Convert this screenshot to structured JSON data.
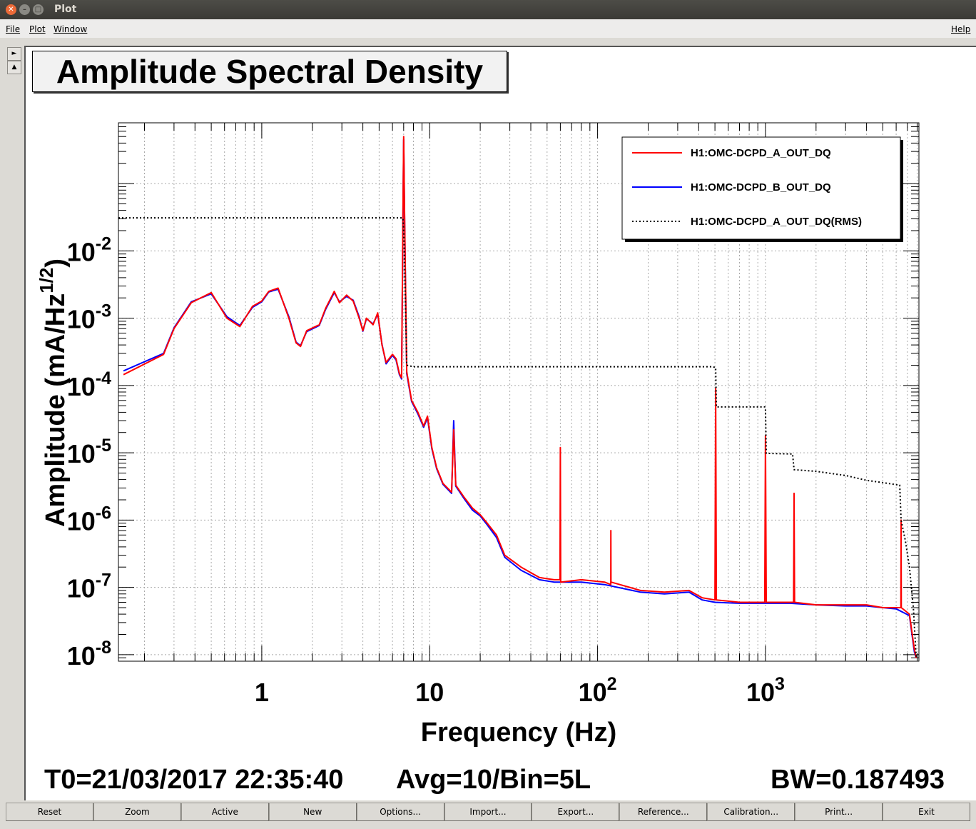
{
  "window": {
    "title": "Plot"
  },
  "menu": {
    "file": "File",
    "plot": "Plot",
    "window": "Window",
    "help": "Help"
  },
  "side_buttons": [
    "►",
    "▲"
  ],
  "plot_title": "Amplitude Spectral Density",
  "footer": {
    "t0": "T0=21/03/2017 22:35:40",
    "avg": "Avg=10/Bin=5L",
    "bw": "BW=0.187493"
  },
  "buttons": [
    "Reset",
    "Zoom",
    "Active",
    "New",
    "Options...",
    "Import...",
    "Export...",
    "Reference...",
    "Calibration...",
    "Print...",
    "Exit"
  ],
  "colors": {
    "series_a": "#ff0000",
    "series_b": "#0000ff",
    "rms": "#000000"
  },
  "chart_data": {
    "type": "line",
    "title": "Amplitude Spectral Density",
    "xlabel": "Frequency (Hz)",
    "ylabel": "Amplitude (mA/Hz^1/2)",
    "xscale": "log",
    "yscale": "log",
    "xlim": [
      0.14,
      8200
    ],
    "ylim": [
      8e-09,
      0.8
    ],
    "grid": true,
    "legend_position": "top-right",
    "x_ticks": [
      {
        "value": 1,
        "base": "1",
        "exp": ""
      },
      {
        "value": 10,
        "base": "10",
        "exp": ""
      },
      {
        "value": 100,
        "base": "10",
        "exp": "2"
      },
      {
        "value": 1000,
        "base": "10",
        "exp": "3"
      }
    ],
    "y_ticks": [
      {
        "value": 1e-08,
        "base": "10",
        "exp": "-8"
      },
      {
        "value": 1e-07,
        "base": "10",
        "exp": "-7"
      },
      {
        "value": 1e-06,
        "base": "10",
        "exp": "-6"
      },
      {
        "value": 1e-05,
        "base": "10",
        "exp": "-5"
      },
      {
        "value": 0.0001,
        "base": "10",
        "exp": "-4"
      },
      {
        "value": 0.001,
        "base": "10",
        "exp": "-3"
      },
      {
        "value": 0.01,
        "base": "10",
        "exp": "-2"
      }
    ],
    "series": [
      {
        "name": "H1:OMC-DCPD_A_OUT_DQ",
        "color": "#ff0000",
        "style": "solid",
        "points": [
          [
            0.15,
            0.000145
          ],
          [
            0.26,
            0.00029
          ],
          [
            0.3,
            0.0007
          ],
          [
            0.38,
            0.0017
          ],
          [
            0.5,
            0.0024
          ],
          [
            0.62,
            0.001
          ],
          [
            0.74,
            0.00075
          ],
          [
            0.88,
            0.0015
          ],
          [
            1.0,
            0.0018
          ],
          [
            1.1,
            0.0025
          ],
          [
            1.25,
            0.0028
          ],
          [
            1.45,
            0.001
          ],
          [
            1.6,
            0.00043
          ],
          [
            1.7,
            0.00038
          ],
          [
            1.85,
            0.00065
          ],
          [
            2.2,
            0.0008
          ],
          [
            2.4,
            0.0014
          ],
          [
            2.7,
            0.0025
          ],
          [
            2.9,
            0.0017
          ],
          [
            3.2,
            0.0022
          ],
          [
            3.5,
            0.0018
          ],
          [
            3.8,
            0.001
          ],
          [
            4.0,
            0.00065
          ],
          [
            4.2,
            0.001
          ],
          [
            4.6,
            0.0008
          ],
          [
            4.9,
            0.0012
          ],
          [
            5.2,
            0.0004
          ],
          [
            5.5,
            0.00022
          ],
          [
            6.0,
            0.00029
          ],
          [
            6.3,
            0.00025
          ],
          [
            6.6,
            0.00015
          ],
          [
            6.8,
            0.00013
          ],
          [
            6.95,
            0.08
          ],
          [
            7.0,
            0.5
          ],
          [
            7.08,
            0.04
          ],
          [
            7.3,
            0.00016
          ],
          [
            7.8,
            6e-05
          ],
          [
            8.5,
            4e-05
          ],
          [
            9.2,
            2.5e-05
          ],
          [
            9.7,
            3.5e-05
          ],
          [
            10.3,
            1.2e-05
          ],
          [
            11.0,
            6e-06
          ],
          [
            12.0,
            3.5e-06
          ],
          [
            13.5,
            2.6e-06
          ],
          [
            13.9,
            2.2e-05
          ],
          [
            14.3,
            3.3e-06
          ],
          [
            16.0,
            2.2e-06
          ],
          [
            18,
            1.5e-06
          ],
          [
            20,
            1.2e-06
          ],
          [
            22,
            9e-07
          ],
          [
            25,
            6e-07
          ],
          [
            28,
            3e-07
          ],
          [
            35,
            2e-07
          ],
          [
            45,
            1.4e-07
          ],
          [
            55,
            1.3e-07
          ],
          [
            59.7,
            1.3e-07
          ],
          [
            60,
            1.2e-05
          ],
          [
            60.3,
            1.2e-07
          ],
          [
            80,
            1.3e-07
          ],
          [
            110,
            1.2e-07
          ],
          [
            119.8,
            1.1e-07
          ],
          [
            120,
            7e-07
          ],
          [
            120.2,
            1.2e-07
          ],
          [
            180,
            9e-08
          ],
          [
            250,
            8.5e-08
          ],
          [
            350,
            9e-08
          ],
          [
            420,
            7e-08
          ],
          [
            500,
            6.5e-08
          ],
          [
            505,
            9e-05
          ],
          [
            510,
            6.5e-08
          ],
          [
            700,
            6e-08
          ],
          [
            990,
            6e-08
          ],
          [
            1000,
            1.8e-05
          ],
          [
            1010,
            6e-08
          ],
          [
            1400,
            6e-08
          ],
          [
            1470,
            6e-08
          ],
          [
            1480,
            2.5e-06
          ],
          [
            1490,
            6e-08
          ],
          [
            2000,
            5.5e-08
          ],
          [
            3000,
            5.5e-08
          ],
          [
            4000,
            5.5e-08
          ],
          [
            5000,
            5e-08
          ],
          [
            6000,
            5e-08
          ],
          [
            6400,
            5e-08
          ],
          [
            6420,
            1e-06
          ],
          [
            6440,
            5e-08
          ],
          [
            7200,
            4e-08
          ],
          [
            7700,
            1.2e-08
          ],
          [
            7900,
            9e-09
          ]
        ]
      },
      {
        "name": "H1:OMC-DCPD_B_OUT_DQ",
        "color": "#0000ff",
        "style": "solid",
        "points": [
          [
            0.15,
            0.000165
          ],
          [
            0.26,
            0.0003
          ],
          [
            0.3,
            0.00072
          ],
          [
            0.38,
            0.00175
          ],
          [
            0.5,
            0.0023
          ],
          [
            0.62,
            0.00105
          ],
          [
            0.74,
            0.00078
          ],
          [
            0.88,
            0.00145
          ],
          [
            1.0,
            0.00175
          ],
          [
            1.1,
            0.00245
          ],
          [
            1.25,
            0.0027
          ],
          [
            1.45,
            0.00105
          ],
          [
            1.6,
            0.00044
          ],
          [
            1.7,
            0.00039
          ],
          [
            1.85,
            0.00063
          ],
          [
            2.2,
            0.00078
          ],
          [
            2.4,
            0.00135
          ],
          [
            2.7,
            0.0024
          ],
          [
            2.9,
            0.00175
          ],
          [
            3.2,
            0.0021
          ],
          [
            3.5,
            0.00185
          ],
          [
            3.8,
            0.00105
          ],
          [
            4.0,
            0.00064
          ],
          [
            4.2,
            0.00098
          ],
          [
            4.6,
            0.00082
          ],
          [
            4.9,
            0.00115
          ],
          [
            5.2,
            0.00041
          ],
          [
            5.5,
            0.00021
          ],
          [
            6.0,
            0.00028
          ],
          [
            6.3,
            0.00024
          ],
          [
            6.6,
            0.000145
          ],
          [
            6.8,
            0.000125
          ],
          [
            6.95,
            0.07
          ],
          [
            7.0,
            0.45
          ],
          [
            7.08,
            0.035
          ],
          [
            7.3,
            0.00015
          ],
          [
            7.8,
            5.8e-05
          ],
          [
            8.5,
            3.8e-05
          ],
          [
            9.2,
            2.4e-05
          ],
          [
            9.7,
            3.3e-05
          ],
          [
            10.3,
            1.15e-05
          ],
          [
            11.0,
            5.8e-06
          ],
          [
            12.0,
            3.4e-06
          ],
          [
            13.5,
            2.5e-06
          ],
          [
            13.9,
            3e-05
          ],
          [
            14.3,
            3.2e-06
          ],
          [
            16.0,
            2.1e-06
          ],
          [
            18,
            1.4e-06
          ],
          [
            20,
            1.15e-06
          ],
          [
            22,
            8.5e-07
          ],
          [
            25,
            5.5e-07
          ],
          [
            28,
            2.8e-07
          ],
          [
            35,
            1.8e-07
          ],
          [
            45,
            1.3e-07
          ],
          [
            55,
            1.2e-07
          ],
          [
            80,
            1.2e-07
          ],
          [
            110,
            1.1e-07
          ],
          [
            180,
            8.5e-08
          ],
          [
            250,
            8e-08
          ],
          [
            350,
            8.5e-08
          ],
          [
            420,
            6.5e-08
          ],
          [
            500,
            6e-08
          ],
          [
            700,
            5.8e-08
          ],
          [
            990,
            5.8e-08
          ],
          [
            1400,
            5.8e-08
          ],
          [
            2000,
            5.5e-08
          ],
          [
            3000,
            5.3e-08
          ],
          [
            4000,
            5.3e-08
          ],
          [
            5000,
            5e-08
          ],
          [
            6000,
            4.8e-08
          ],
          [
            7200,
            3.8e-08
          ],
          [
            7700,
            1.1e-08
          ],
          [
            7900,
            9e-09
          ]
        ]
      },
      {
        "name": "H1:OMC-DCPD_A_OUT_DQ(RMS)",
        "color": "#000000",
        "style": "dotted",
        "points": [
          [
            0.14,
            0.031
          ],
          [
            6.9,
            0.031
          ],
          [
            6.95,
            0.028
          ],
          [
            7.05,
            0.012
          ],
          [
            7.3,
            0.0002
          ],
          [
            8,
            0.00019
          ],
          [
            100,
            0.00019
          ],
          [
            480,
            0.00019
          ],
          [
            505,
            0.000185
          ],
          [
            510,
            4.8e-05
          ],
          [
            990,
            4.8e-05
          ],
          [
            1000,
            4.5e-05
          ],
          [
            1010,
            9.8e-06
          ],
          [
            1450,
            9.6e-06
          ],
          [
            1480,
            5.6e-06
          ],
          [
            2000,
            5.3e-06
          ],
          [
            3000,
            4.6e-06
          ],
          [
            4000,
            3.9e-06
          ],
          [
            5000,
            3.6e-06
          ],
          [
            6300,
            3.3e-06
          ],
          [
            6420,
            1e-06
          ],
          [
            6800,
            5e-07
          ],
          [
            7200,
            2e-07
          ],
          [
            7600,
            5e-08
          ],
          [
            7900,
            9e-09
          ]
        ]
      }
    ]
  }
}
